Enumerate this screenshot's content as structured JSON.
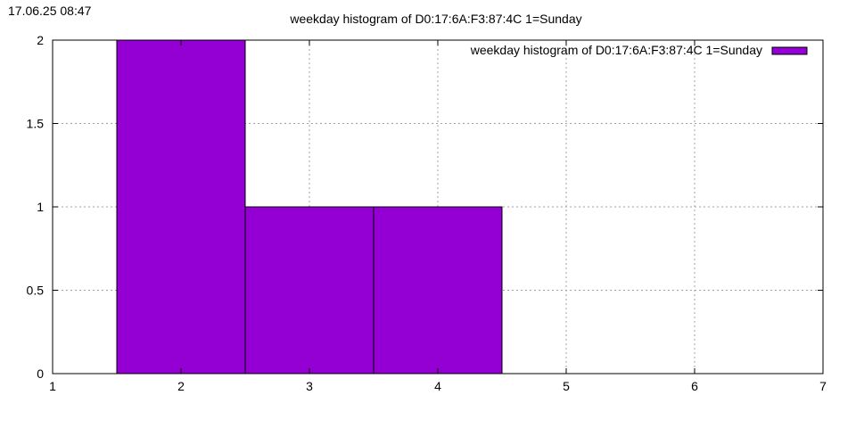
{
  "timestamp": "17.06.25 08:47",
  "chart_data": {
    "type": "bar",
    "title": "weekday histogram of D0:17:6A:F3:87:4C 1=Sunday",
    "xlabel": "",
    "ylabel": "",
    "xlim": [
      1,
      7
    ],
    "ylim": [
      0,
      2
    ],
    "x_ticks": [
      1,
      2,
      3,
      4,
      5,
      6,
      7
    ],
    "y_ticks": [
      0,
      0.5,
      1,
      1.5,
      2
    ],
    "y_tick_labels": [
      "0",
      "0.5",
      "1",
      "1.5",
      "2"
    ],
    "grid": true,
    "legend_position": "top-right",
    "bar_color": "#9400d3",
    "bar_width": 1,
    "series": [
      {
        "name": "weekday histogram of D0:17:6A:F3:87:4C 1=Sunday",
        "x": [
          2,
          3,
          4
        ],
        "values": [
          2,
          1,
          1
        ]
      }
    ]
  }
}
